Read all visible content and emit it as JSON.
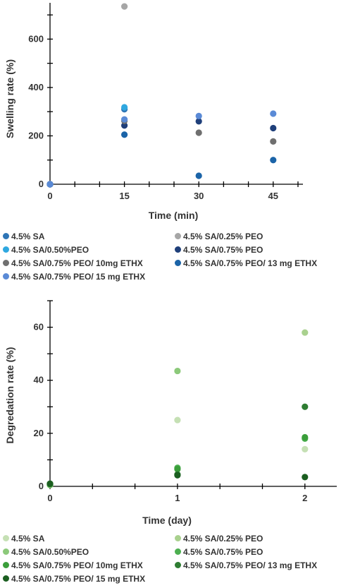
{
  "chart_data": [
    {
      "type": "scatter",
      "title": "",
      "xlabel": "Time (min)",
      "ylabel": "Swelling rate (%)",
      "x_ticks": [
        0,
        15,
        30,
        45
      ],
      "y_ticks": [
        0,
        200,
        400,
        600
      ],
      "xlim": [
        0,
        51
      ],
      "ylim": [
        0,
        750
      ],
      "grid": false,
      "legend_position": "bottom",
      "series": [
        {
          "name": "4.5% SA",
          "color": "#2e75b6",
          "points": [
            [
              0,
              0
            ],
            [
              15,
              310
            ]
          ]
        },
        {
          "name": "4.5% SA/0.25% PEO",
          "color": "#a6a6a6",
          "points": [
            [
              0,
              0
            ],
            [
              15,
              735
            ]
          ]
        },
        {
          "name": "4.5% SA/0.50%PEO",
          "color": "#2fa8e0",
          "points": [
            [
              0,
              0
            ],
            [
              15,
              318
            ]
          ]
        },
        {
          "name": "4.5% SA/0.75% PEO",
          "color": "#1f3f7a",
          "points": [
            [
              0,
              0
            ],
            [
              15,
              243
            ],
            [
              30,
              260
            ],
            [
              45,
              232
            ]
          ]
        },
        {
          "name": "4.5% SA/0.75% PEO/ 10mg ETHX",
          "color": "#6f6f6f",
          "points": [
            [
              0,
              0
            ],
            [
              15,
              262
            ],
            [
              30,
              213
            ],
            [
              45,
              177
            ]
          ]
        },
        {
          "name": "4.5% SA/0.75% PEO/ 13 mg ETHX",
          "color": "#1b64a8",
          "points": [
            [
              0,
              0
            ],
            [
              15,
              205
            ],
            [
              30,
              35
            ],
            [
              45,
              100
            ]
          ]
        },
        {
          "name": "4.5% SA/0.75% PEO/ 15 mg ETHX",
          "color": "#5a8ad6",
          "points": [
            [
              0,
              0
            ],
            [
              15,
              268
            ],
            [
              30,
              282
            ],
            [
              45,
              292
            ]
          ]
        }
      ]
    },
    {
      "type": "scatter",
      "title": "",
      "xlabel": "Time (day)",
      "ylabel": "Degredation  rate (%)",
      "x_ticks": [
        0,
        1,
        2
      ],
      "y_ticks": [
        0,
        20,
        40,
        60
      ],
      "xlim": [
        0,
        2.25
      ],
      "ylim": [
        0,
        70
      ],
      "grid": false,
      "legend_position": "bottom",
      "series": [
        {
          "name": "4.5% SA",
          "color": "#c5e0b4",
          "points": [
            [
              0,
              0.5
            ],
            [
              1,
              25
            ],
            [
              2,
              14
            ]
          ]
        },
        {
          "name": "4.5% SA/0.25% PEO",
          "color": "#a9d18e",
          "points": [
            [
              0,
              0.5
            ],
            [
              2,
              58
            ]
          ]
        },
        {
          "name": "4.5% SA/0.50%PEO",
          "color": "#8cc97a",
          "points": [
            [
              0,
              0.5
            ],
            [
              1,
              43.5
            ]
          ]
        },
        {
          "name": "4.5% SA/0.75% PEO",
          "color": "#4caf50",
          "points": [
            [
              0,
              0.8
            ],
            [
              1,
              7
            ],
            [
              2,
              18
            ]
          ]
        },
        {
          "name": "4.5% SA/0.75% PEO/ 10mg ETHX",
          "color": "#3a9e3a",
          "points": [
            [
              0,
              0.8
            ],
            [
              1,
              6.5
            ],
            [
              2,
              18.5
            ]
          ]
        },
        {
          "name": "4.5% SA/0.75% PEO/ 13 mg ETHX",
          "color": "#2e7d32",
          "points": [
            [
              0,
              1
            ],
            [
              1,
              4.5
            ],
            [
              2,
              30
            ]
          ]
        },
        {
          "name": "4.5% SA/0.75% PEO/ 15 mg ETHX",
          "color": "#1b5e20",
          "points": [
            [
              0,
              1
            ],
            [
              1,
              4.2
            ],
            [
              2,
              3.5
            ]
          ]
        }
      ]
    }
  ]
}
